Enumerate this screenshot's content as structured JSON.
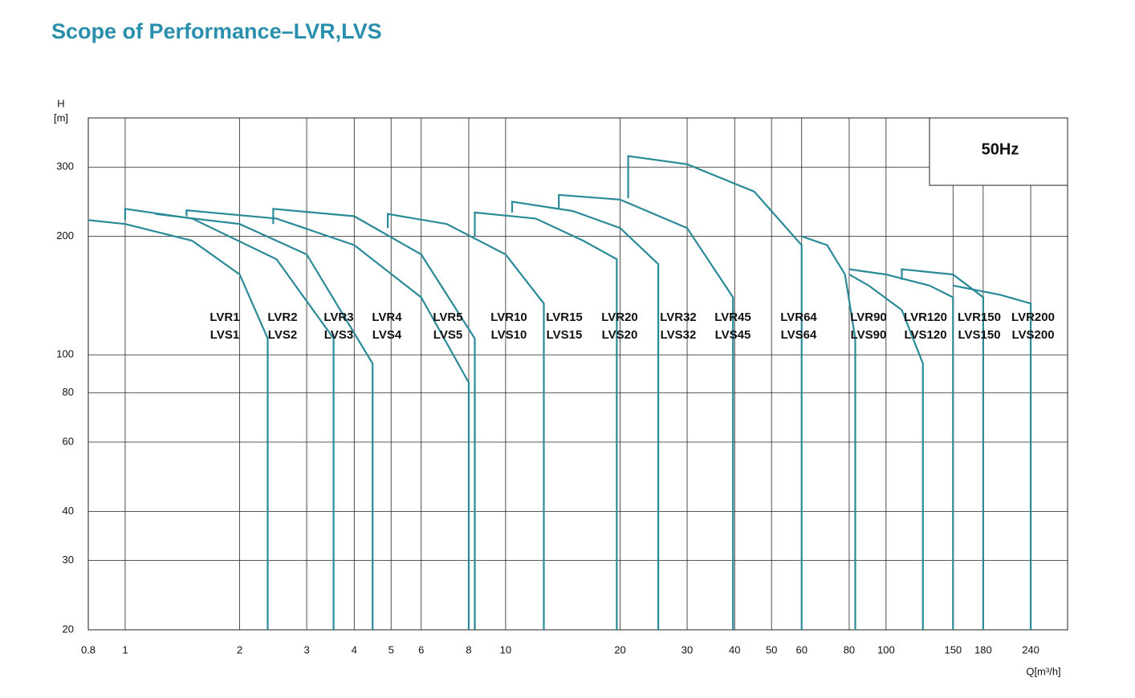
{
  "chart_data": {
    "type": "line",
    "title": "Scope of Performance–LVR,LVS",
    "y_label": "H",
    "y_unit": "[m]",
    "x_label": "Q[m³/h]",
    "annotation": "50Hz",
    "xscale": "log",
    "yscale": "log",
    "grid": true,
    "color": "#2b8a98",
    "xlim": [
      0.8,
      300
    ],
    "ylim": [
      20,
      400
    ],
    "xticks": [
      0.8,
      1,
      2,
      3,
      4,
      5,
      6,
      8,
      10,
      20,
      30,
      40,
      50,
      60,
      80,
      100,
      150,
      180,
      240
    ],
    "yticks": [
      20,
      30,
      40,
      60,
      80,
      100,
      200,
      300
    ],
    "series": [
      {
        "name": "LVR1",
        "alt_name": "LVS1",
        "x": [
          0.8,
          1,
          1.5,
          2,
          2.37,
          2.37
        ],
        "values": [
          220,
          215,
          195,
          160,
          110,
          20
        ]
      },
      {
        "name": "LVR2",
        "alt_name": "LVS2",
        "x": [
          1,
          1,
          1.5,
          2.5,
          3.53,
          3.53
        ],
        "values": [
          220,
          235,
          222,
          175,
          110,
          20
        ]
      },
      {
        "name": "LVR3",
        "alt_name": "LVS3",
        "x": [
          1.2,
          2,
          3,
          4.47,
          4.47
        ],
        "values": [
          228,
          215,
          180,
          95,
          20
        ]
      },
      {
        "name": "LVR4",
        "alt_name": "LVS4",
        "x": [
          1.45,
          1.45,
          2.5,
          4,
          6,
          8,
          8
        ],
        "values": [
          225,
          233,
          222,
          190,
          140,
          85,
          20
        ]
      },
      {
        "name": "LVR5",
        "alt_name": "LVS5",
        "x": [
          2.45,
          2.45,
          4,
          6,
          8.3,
          8.3
        ],
        "values": [
          215,
          235,
          225,
          180,
          110,
          20
        ]
      },
      {
        "name": "LVR10",
        "alt_name": "LVS10",
        "x": [
          4.9,
          4.9,
          7,
          10,
          12.6,
          12.6
        ],
        "values": [
          210,
          228,
          215,
          180,
          135,
          20
        ]
      },
      {
        "name": "LVR15",
        "alt_name": "LVS15",
        "x": [
          8.3,
          8.3,
          12,
          16,
          19.6,
          19.6
        ],
        "values": [
          200,
          230,
          222,
          195,
          175,
          20
        ]
      },
      {
        "name": "LVR20",
        "alt_name": "LVS20",
        "x": [
          10.4,
          10.4,
          15,
          20,
          25.2,
          25.2
        ],
        "values": [
          230,
          245,
          232,
          210,
          170,
          20
        ]
      },
      {
        "name": "LVR32",
        "alt_name": "LVS32",
        "x": [
          13.8,
          13.8,
          20,
          30,
          39.6,
          39.6
        ],
        "values": [
          235,
          255,
          248,
          210,
          140,
          20
        ]
      },
      {
        "name": "LVR45",
        "alt_name": "LVS45",
        "x": [
          21,
          21,
          30,
          45,
          60,
          60
        ],
        "values": [
          250,
          320,
          305,
          260,
          190,
          20
        ]
      },
      {
        "name": "LVR64",
        "alt_name": "LVS64",
        "x": [
          60,
          70,
          78,
          83,
          83
        ],
        "values": [
          200,
          190,
          160,
          110,
          20
        ]
      },
      {
        "name": "LVR90",
        "alt_name": "LVS90",
        "x": [
          80,
          90,
          110,
          125,
          125
        ],
        "values": [
          160,
          150,
          130,
          95,
          20
        ]
      },
      {
        "name": "LVR120",
        "alt_name": "LVS120",
        "x": [
          80,
          100,
          130,
          150,
          150
        ],
        "values": [
          165,
          160,
          150,
          140,
          20
        ]
      },
      {
        "name": "LVR150",
        "alt_name": "LVS150",
        "x": [
          110,
          110,
          150,
          180,
          180
        ],
        "values": [
          155,
          165,
          160,
          140,
          20
        ]
      },
      {
        "name": "LVR200",
        "alt_name": "LVS200",
        "x": [
          150,
          200,
          240,
          240
        ],
        "values": [
          150,
          142,
          135,
          20
        ]
      }
    ]
  }
}
